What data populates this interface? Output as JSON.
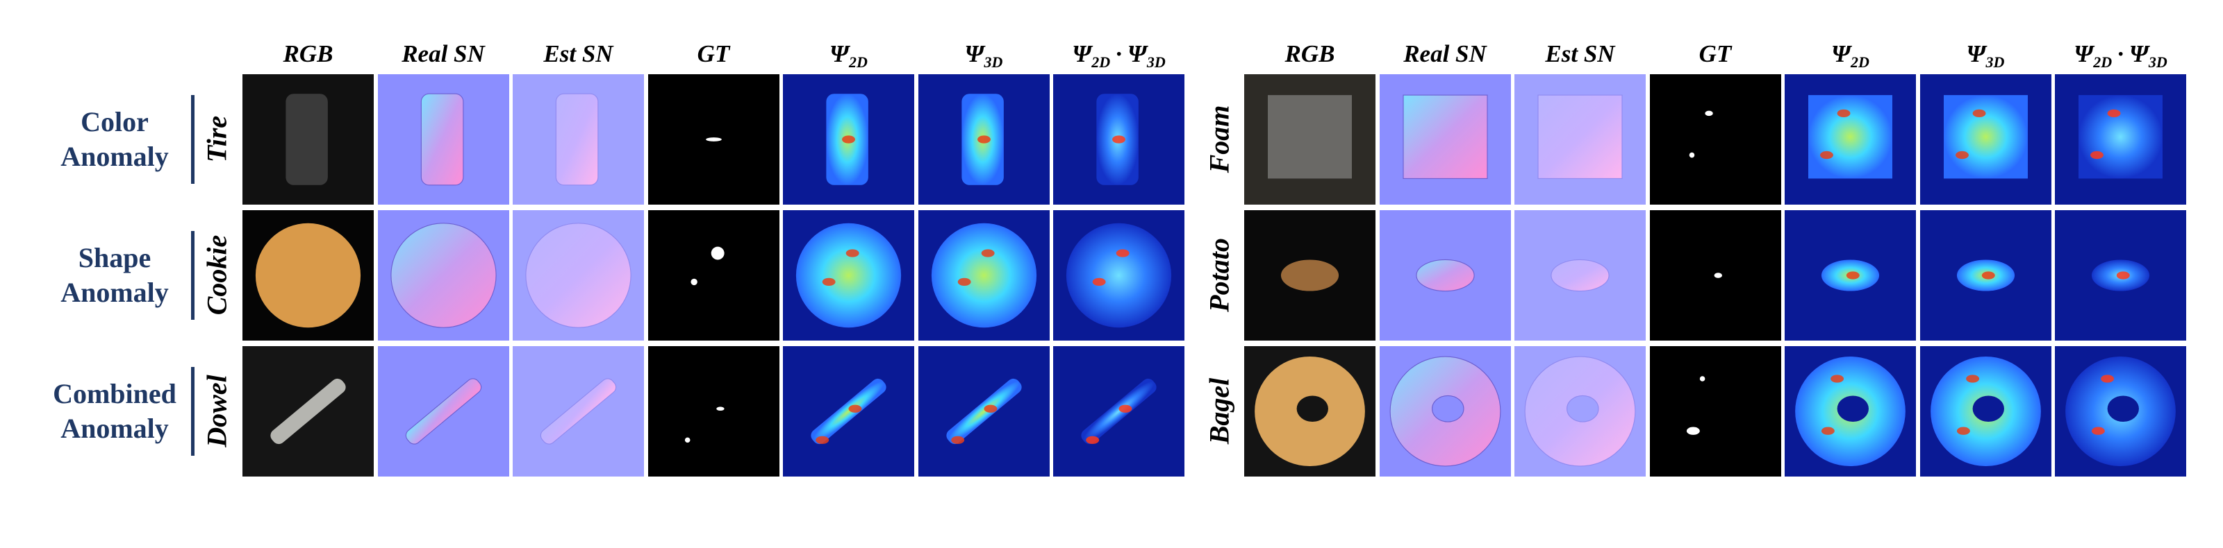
{
  "panels": [
    {
      "columns": [
        {
          "text": "RGB"
        },
        {
          "text": "Real SN"
        },
        {
          "text": "Est SN"
        },
        {
          "text": "GT"
        },
        {
          "terms": [
            {
              "symbol": "Ψ",
              "sub": "2D"
            }
          ]
        },
        {
          "terms": [
            {
              "symbol": "Ψ",
              "sub": "3D"
            }
          ]
        },
        {
          "terms": [
            {
              "symbol": "Ψ",
              "sub": "2D"
            },
            {
              "symbol": "Ψ",
              "sub": "3D"
            }
          ],
          "operator": "·"
        }
      ],
      "rows": [
        {
          "category": [
            "Color",
            "Anomaly"
          ],
          "object": "Tire"
        },
        {
          "category": [
            "Shape",
            "Anomaly"
          ],
          "object": "Cookie"
        },
        {
          "category": [
            "Combined",
            "Anomaly"
          ],
          "object": "Dowel"
        }
      ]
    },
    {
      "columns": [
        {
          "text": "RGB"
        },
        {
          "text": "Real SN"
        },
        {
          "text": "Est SN"
        },
        {
          "text": "GT"
        },
        {
          "terms": [
            {
              "symbol": "Ψ",
              "sub": "2D"
            }
          ]
        },
        {
          "terms": [
            {
              "symbol": "Ψ",
              "sub": "3D"
            }
          ]
        },
        {
          "terms": [
            {
              "symbol": "Ψ",
              "sub": "2D"
            },
            {
              "symbol": "Ψ",
              "sub": "3D"
            }
          ],
          "operator": "·"
        }
      ],
      "rows": [
        {
          "object": "Foam"
        },
        {
          "object": "Potato"
        },
        {
          "object": "Bagel"
        }
      ]
    }
  ]
}
